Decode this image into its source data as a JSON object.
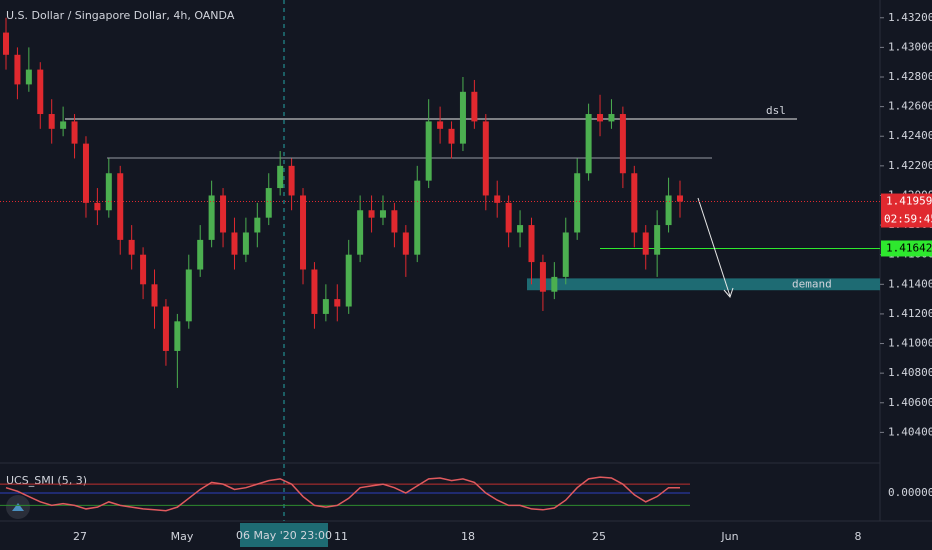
{
  "header": {
    "title": "U.S. Dollar / Singapore Dollar, 4h, OANDA"
  },
  "chart_data": {
    "type": "candlestick",
    "up_color": "#4caf50",
    "down_color": "#e0292f",
    "ylim": [
      1.402,
      1.4332
    ],
    "yticks": [
      {
        "value": 1.432,
        "label": "1.43200"
      },
      {
        "value": 1.43,
        "label": "1.43000"
      },
      {
        "value": 1.428,
        "label": "1.42800"
      },
      {
        "value": 1.426,
        "label": "1.42600"
      },
      {
        "value": 1.424,
        "label": "1.42400"
      },
      {
        "value": 1.422,
        "label": "1.42200"
      },
      {
        "value": 1.42,
        "label": "1.42000"
      },
      {
        "value": 1.418,
        "label": "1.41800"
      },
      {
        "value": 1.416,
        "label": "1.41600"
      },
      {
        "value": 1.414,
        "label": "1.41400"
      },
      {
        "value": 1.412,
        "label": "1.41200"
      },
      {
        "value": 1.41,
        "label": "1.41000"
      },
      {
        "value": 1.408,
        "label": "1.40800"
      },
      {
        "value": 1.406,
        "label": "1.40600"
      },
      {
        "value": 1.404,
        "label": "1.40400"
      }
    ],
    "candles": [
      [
        1.431,
        1.432,
        1.4285,
        1.4295
      ],
      [
        1.4295,
        1.43,
        1.4265,
        1.4275
      ],
      [
        1.4275,
        1.43,
        1.427,
        1.4285
      ],
      [
        1.4285,
        1.429,
        1.4245,
        1.4255
      ],
      [
        1.4255,
        1.4265,
        1.4235,
        1.4245
      ],
      [
        1.4245,
        1.426,
        1.424,
        1.425
      ],
      [
        1.425,
        1.4255,
        1.4225,
        1.4235
      ],
      [
        1.4235,
        1.424,
        1.4185,
        1.4195
      ],
      [
        1.4195,
        1.4205,
        1.418,
        1.419
      ],
      [
        1.419,
        1.4225,
        1.4185,
        1.4215
      ],
      [
        1.4215,
        1.422,
        1.416,
        1.417
      ],
      [
        1.417,
        1.418,
        1.415,
        1.416
      ],
      [
        1.416,
        1.4165,
        1.413,
        1.414
      ],
      [
        1.414,
        1.415,
        1.411,
        1.4125
      ],
      [
        1.4125,
        1.413,
        1.4085,
        1.4095
      ],
      [
        1.4095,
        1.412,
        1.407,
        1.4115
      ],
      [
        1.4115,
        1.416,
        1.411,
        1.415
      ],
      [
        1.415,
        1.418,
        1.4145,
        1.417
      ],
      [
        1.417,
        1.421,
        1.4165,
        1.42
      ],
      [
        1.42,
        1.4205,
        1.4165,
        1.4175
      ],
      [
        1.4175,
        1.4185,
        1.415,
        1.416
      ],
      [
        1.416,
        1.4185,
        1.4155,
        1.4175
      ],
      [
        1.4175,
        1.4195,
        1.4165,
        1.4185
      ],
      [
        1.4185,
        1.4215,
        1.418,
        1.4205
      ],
      [
        1.4205,
        1.423,
        1.42,
        1.422
      ],
      [
        1.422,
        1.4225,
        1.419,
        1.42
      ],
      [
        1.42,
        1.4205,
        1.414,
        1.415
      ],
      [
        1.415,
        1.4155,
        1.411,
        1.412
      ],
      [
        1.412,
        1.414,
        1.4115,
        1.413
      ],
      [
        1.413,
        1.414,
        1.4115,
        1.4125
      ],
      [
        1.4125,
        1.417,
        1.412,
        1.416
      ],
      [
        1.416,
        1.42,
        1.4155,
        1.419
      ],
      [
        1.419,
        1.42,
        1.4175,
        1.4185
      ],
      [
        1.4185,
        1.42,
        1.418,
        1.419
      ],
      [
        1.419,
        1.4195,
        1.4165,
        1.4175
      ],
      [
        1.4175,
        1.418,
        1.4145,
        1.416
      ],
      [
        1.416,
        1.422,
        1.4155,
        1.421
      ],
      [
        1.421,
        1.4265,
        1.4205,
        1.425
      ],
      [
        1.425,
        1.426,
        1.4235,
        1.4245
      ],
      [
        1.4245,
        1.425,
        1.4225,
        1.4235
      ],
      [
        1.4235,
        1.428,
        1.423,
        1.427
      ],
      [
        1.427,
        1.4278,
        1.4245,
        1.425
      ],
      [
        1.425,
        1.4255,
        1.419,
        1.42
      ],
      [
        1.42,
        1.421,
        1.4185,
        1.4195
      ],
      [
        1.4195,
        1.42,
        1.4165,
        1.4175
      ],
      [
        1.4175,
        1.419,
        1.4165,
        1.418
      ],
      [
        1.418,
        1.4185,
        1.414,
        1.4155
      ],
      [
        1.4155,
        1.416,
        1.4122,
        1.4135
      ],
      [
        1.4135,
        1.4155,
        1.413,
        1.4145
      ],
      [
        1.4145,
        1.4185,
        1.414,
        1.4175
      ],
      [
        1.4175,
        1.4225,
        1.417,
        1.4215
      ],
      [
        1.4215,
        1.4262,
        1.421,
        1.4255
      ],
      [
        1.4255,
        1.4268,
        1.424,
        1.425
      ],
      [
        1.425,
        1.4265,
        1.4245,
        1.4255
      ],
      [
        1.4255,
        1.426,
        1.4205,
        1.4215
      ],
      [
        1.4215,
        1.422,
        1.4165,
        1.4175
      ],
      [
        1.4175,
        1.418,
        1.415,
        1.416
      ],
      [
        1.416,
        1.419,
        1.4145,
        1.418
      ],
      [
        1.418,
        1.4212,
        1.4175,
        1.42
      ],
      [
        1.42,
        1.421,
        1.4185,
        1.41959
      ]
    ],
    "last_price": {
      "value": 1.41959,
      "label": "1.41959",
      "color": "#e0292f"
    },
    "countdown": "02:59:45",
    "level_label": {
      "value": 1.41642,
      "label": "1.41642",
      "color": "#2ee82e"
    },
    "dsl_level": 1.42516,
    "dsl_label": "dsl",
    "gray_level": 1.42253,
    "demand_zone": [
      1.4136,
      1.4144
    ],
    "demand_label": "demand",
    "time_labels": [
      "27",
      "May",
      "11",
      "18",
      "25",
      "Jun",
      "8"
    ],
    "crosshair_label": "06 May '20  23:00",
    "indicator": {
      "title": "UCS_SMI (5, 3)",
      "color": "#e05a5e",
      "ylim": [
        -1.3,
        1.3
      ],
      "yticks": [
        {
          "value": 0,
          "label": "0.00000"
        }
      ],
      "upper_level": 0.5,
      "lower_level": -0.7,
      "values": [
        0.3,
        0.1,
        -0.2,
        -0.5,
        -0.7,
        -0.6,
        -0.7,
        -0.9,
        -0.8,
        -0.5,
        -0.7,
        -0.8,
        -0.9,
        -0.95,
        -1,
        -0.8,
        -0.3,
        0.2,
        0.6,
        0.5,
        0.2,
        0.3,
        0.5,
        0.7,
        0.8,
        0.5,
        -0.2,
        -0.7,
        -0.8,
        -0.7,
        -0.3,
        0.3,
        0.4,
        0.5,
        0.3,
        0,
        0.4,
        0.8,
        0.85,
        0.7,
        0.8,
        0.6,
        0,
        -0.4,
        -0.7,
        -0.7,
        -0.9,
        -0.95,
        -0.85,
        -0.4,
        0.3,
        0.8,
        0.9,
        0.85,
        0.5,
        -0.1,
        -0.5,
        -0.2,
        0.3,
        0.3
      ]
    }
  }
}
